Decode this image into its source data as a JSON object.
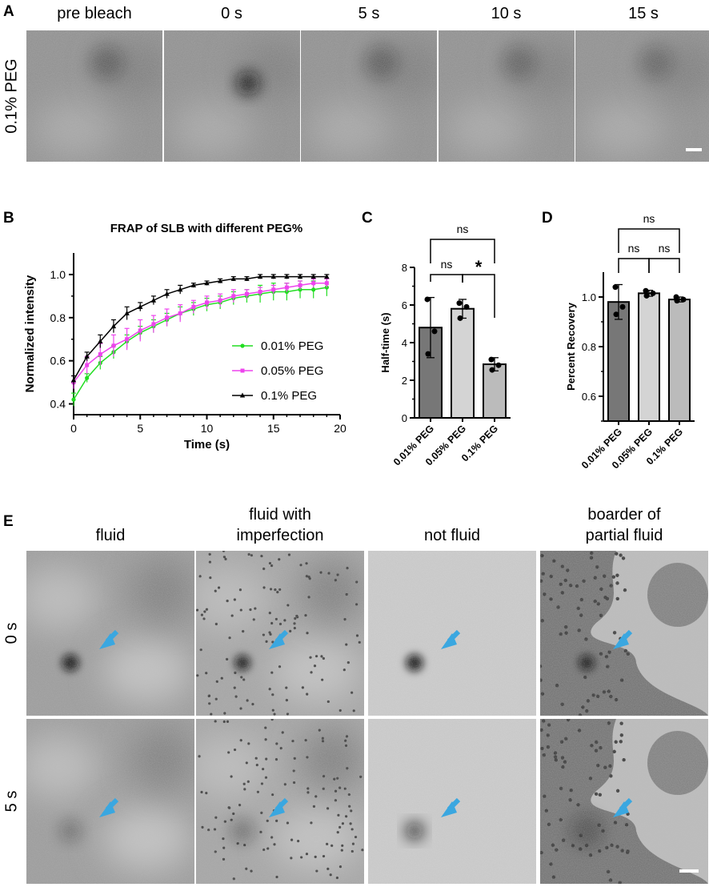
{
  "panelA": {
    "label": "A",
    "row_label": "0.1% PEG",
    "columns": [
      "pre bleach",
      "0 s",
      "5 s",
      "10 s",
      "15 s"
    ]
  },
  "panelB": {
    "label": "B",
    "chart_data": {
      "type": "line",
      "title": "FRAP of SLB with different PEG%",
      "xlabel": "Time (s)",
      "ylabel": "Normalized intensity",
      "xlim": [
        0,
        20
      ],
      "ylim": [
        0.35,
        1.1
      ],
      "xticks": [
        "0",
        "5",
        "10",
        "15",
        "20"
      ],
      "yticks": [
        "0.4",
        "0.6",
        "0.8",
        "1.0"
      ],
      "legend_position": "right-middle",
      "x": [
        0,
        1,
        2,
        3,
        4,
        5,
        6,
        7,
        8,
        9,
        10,
        11,
        12,
        13,
        14,
        15,
        16,
        17,
        18,
        19
      ],
      "series": [
        {
          "name": "0.01% PEG",
          "color": "#22dd22",
          "marker": "circle",
          "values": [
            0.42,
            0.52,
            0.59,
            0.64,
            0.69,
            0.73,
            0.76,
            0.79,
            0.82,
            0.84,
            0.86,
            0.87,
            0.89,
            0.9,
            0.91,
            0.92,
            0.92,
            0.93,
            0.93,
            0.94
          ],
          "errors": [
            0.03,
            0.02,
            0.03,
            0.03,
            0.03,
            0.03,
            0.03,
            0.03,
            0.03,
            0.03,
            0.03,
            0.03,
            0.03,
            0.03,
            0.04,
            0.04,
            0.04,
            0.04,
            0.04,
            0.04
          ]
        },
        {
          "name": "0.05% PEG",
          "color": "#ee44ee",
          "marker": "square",
          "values": [
            0.5,
            0.58,
            0.63,
            0.67,
            0.7,
            0.74,
            0.77,
            0.8,
            0.82,
            0.85,
            0.87,
            0.88,
            0.9,
            0.91,
            0.92,
            0.93,
            0.94,
            0.95,
            0.96,
            0.96
          ],
          "errors": [
            0.03,
            0.04,
            0.05,
            0.05,
            0.05,
            0.05,
            0.04,
            0.04,
            0.04,
            0.03,
            0.03,
            0.03,
            0.03,
            0.02,
            0.02,
            0.02,
            0.02,
            0.02,
            0.02,
            0.02
          ]
        },
        {
          "name": "0.1% PEG",
          "color": "#000000",
          "marker": "triangle",
          "values": [
            0.51,
            0.62,
            0.69,
            0.76,
            0.82,
            0.85,
            0.88,
            0.91,
            0.93,
            0.95,
            0.96,
            0.97,
            0.98,
            0.98,
            0.99,
            0.99,
            0.99,
            0.99,
            0.99,
            0.99
          ],
          "errors": [
            0.02,
            0.02,
            0.03,
            0.03,
            0.03,
            0.02,
            0.02,
            0.02,
            0.02,
            0.01,
            0.01,
            0.01,
            0.01,
            0.01,
            0.01,
            0.01,
            0.01,
            0.01,
            0.01,
            0.01
          ]
        }
      ]
    }
  },
  "panelC": {
    "label": "C",
    "chart_data": {
      "type": "bar",
      "title": "",
      "xlabel": "",
      "ylabel": "Half-time (s)",
      "ylim": [
        0,
        8
      ],
      "yticks": [
        "0",
        "2",
        "4",
        "6",
        "8"
      ],
      "categories": [
        "0.01% PEG",
        "0.05% PEG",
        "0.1% PEG"
      ],
      "values": [
        4.8,
        5.8,
        2.85
      ],
      "errors": [
        1.6,
        0.5,
        0.35
      ],
      "points": [
        [
          6.3,
          4.6,
          3.4
        ],
        [
          6.1,
          5.9,
          5.3
        ],
        [
          3.1,
          2.8,
          2.55
        ]
      ],
      "bar_colors": [
        "#777777",
        "#d4d4d4",
        "#bbbbbb"
      ],
      "significance": [
        {
          "pair": [
            0,
            1
          ],
          "label": "ns"
        },
        {
          "pair": [
            1,
            2
          ],
          "label": "*"
        },
        {
          "pair": [
            0,
            2
          ],
          "label": "ns"
        }
      ]
    }
  },
  "panelD": {
    "label": "D",
    "chart_data": {
      "type": "bar",
      "title": "",
      "xlabel": "",
      "ylabel": "Percent Recovery",
      "ylim": [
        0.5,
        1.1
      ],
      "yticks": [
        "0.6",
        "0.8",
        "1.0"
      ],
      "categories": [
        "0.01% PEG",
        "0.05% PEG",
        "0.1% PEG"
      ],
      "values": [
        0.98,
        1.015,
        0.99
      ],
      "errors": [
        0.07,
        0.012,
        0.01
      ],
      "points": [
        [
          1.04,
          0.96,
          0.93
        ],
        [
          1.025,
          1.015,
          1.005
        ],
        [
          1.0,
          0.99,
          0.985
        ]
      ],
      "bar_colors": [
        "#777777",
        "#d4d4d4",
        "#bbbbbb"
      ],
      "significance": [
        {
          "pair": [
            0,
            1
          ],
          "label": "ns"
        },
        {
          "pair": [
            1,
            2
          ],
          "label": "ns"
        },
        {
          "pair": [
            0,
            2
          ],
          "label": "ns"
        }
      ]
    }
  },
  "panelE": {
    "label": "E",
    "columns": [
      {
        "line1": "fluid",
        "line2": ""
      },
      {
        "line1": "fluid with",
        "line2": "imperfection"
      },
      {
        "line1": "not fluid",
        "line2": ""
      },
      {
        "line1": "boarder of",
        "line2": "partial fluid"
      }
    ],
    "rows": [
      "0 s",
      "5 s"
    ]
  },
  "colors": {
    "arrow": "#3aa7e0"
  }
}
